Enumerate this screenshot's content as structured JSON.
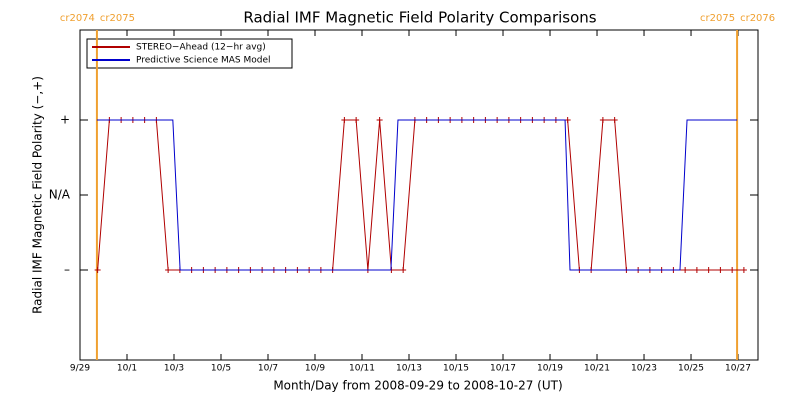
{
  "chart_data": {
    "type": "line",
    "title": "Radial IMF Magnetic Field Polarity Comparisons",
    "xlabel": "Month/Day from 2008-09-29 to 2008-10-27 (UT)",
    "ylabel": "Radial IMF Magnetic Field Polarity (−,+)",
    "xlim": [
      0,
      28.85
    ],
    "xticks": [
      {
        "value": 0,
        "label": "9/29"
      },
      {
        "value": 2,
        "label": "10/1"
      },
      {
        "value": 4,
        "label": "10/3"
      },
      {
        "value": 6,
        "label": "10/5"
      },
      {
        "value": 8,
        "label": "10/7"
      },
      {
        "value": 10,
        "label": "10/9"
      },
      {
        "value": 12,
        "label": "10/11"
      },
      {
        "value": 14,
        "label": "10/13"
      },
      {
        "value": 16,
        "label": "10/15"
      },
      {
        "value": 18,
        "label": "10/17"
      },
      {
        "value": 20,
        "label": "10/19"
      },
      {
        "value": 22,
        "label": "10/21"
      },
      {
        "value": 24,
        "label": "10/23"
      },
      {
        "value": 26,
        "label": "10/25"
      },
      {
        "value": 28,
        "label": "10/27"
      }
    ],
    "ylim": [
      -2.2,
      2.2
    ],
    "yticks": [
      {
        "value": -1,
        "label": "–"
      },
      {
        "value": 0,
        "label": "N/A"
      },
      {
        "value": 1,
        "label": "+"
      }
    ],
    "boundaries": [
      {
        "x": 0.72,
        "left": "cr2074",
        "right": "cr2075",
        "color": "#f0a030"
      },
      {
        "x": 27.96,
        "left": "cr2075",
        "right": "cr2076",
        "color": "#f0a030"
      }
    ],
    "series": [
      {
        "name": "STEREO−Ahead (12−hr avg)",
        "color": "#b00000",
        "markers": true,
        "x": [
          0.75,
          1.25,
          1.75,
          2.25,
          2.75,
          3.25,
          3.75,
          4.25,
          4.75,
          5.25,
          5.75,
          6.25,
          6.75,
          7.25,
          7.75,
          8.25,
          8.75,
          9.25,
          9.75,
          10.25,
          10.75,
          11.25,
          11.75,
          12.25,
          12.75,
          13.25,
          13.75,
          14.25,
          14.75,
          15.25,
          15.75,
          16.25,
          16.75,
          17.25,
          17.75,
          18.25,
          18.75,
          19.25,
          19.75,
          20.25,
          20.75,
          21.25,
          21.75,
          22.25,
          22.75,
          23.25,
          23.75,
          24.25,
          24.75,
          25.25,
          25.75,
          26.25,
          26.75,
          27.25,
          27.75,
          28.25
        ],
        "values": [
          -1,
          1,
          1,
          1,
          1,
          1,
          -1,
          -1,
          -1,
          -1,
          -1,
          -1,
          -1,
          -1,
          -1,
          -1,
          -1,
          -1,
          -1,
          -1,
          -1,
          1,
          1,
          -1,
          1,
          -1,
          -1,
          1,
          1,
          1,
          1,
          1,
          1,
          1,
          1,
          1,
          1,
          1,
          1,
          1,
          1,
          -1,
          -1,
          1,
          1,
          -1,
          -1,
          -1,
          -1,
          -1,
          -1,
          -1,
          -1,
          -1,
          -1,
          -1
        ]
      },
      {
        "name": "Predictive Science MAS Model",
        "color": "#0000cc",
        "markers": false,
        "x": [
          0.72,
          3.95,
          4.26,
          13.23,
          13.53,
          20.64,
          20.85,
          25.53,
          25.83,
          27.96
        ],
        "values": [
          1,
          1,
          -1,
          -1,
          1,
          1,
          -1,
          -1,
          1,
          1
        ]
      }
    ]
  }
}
